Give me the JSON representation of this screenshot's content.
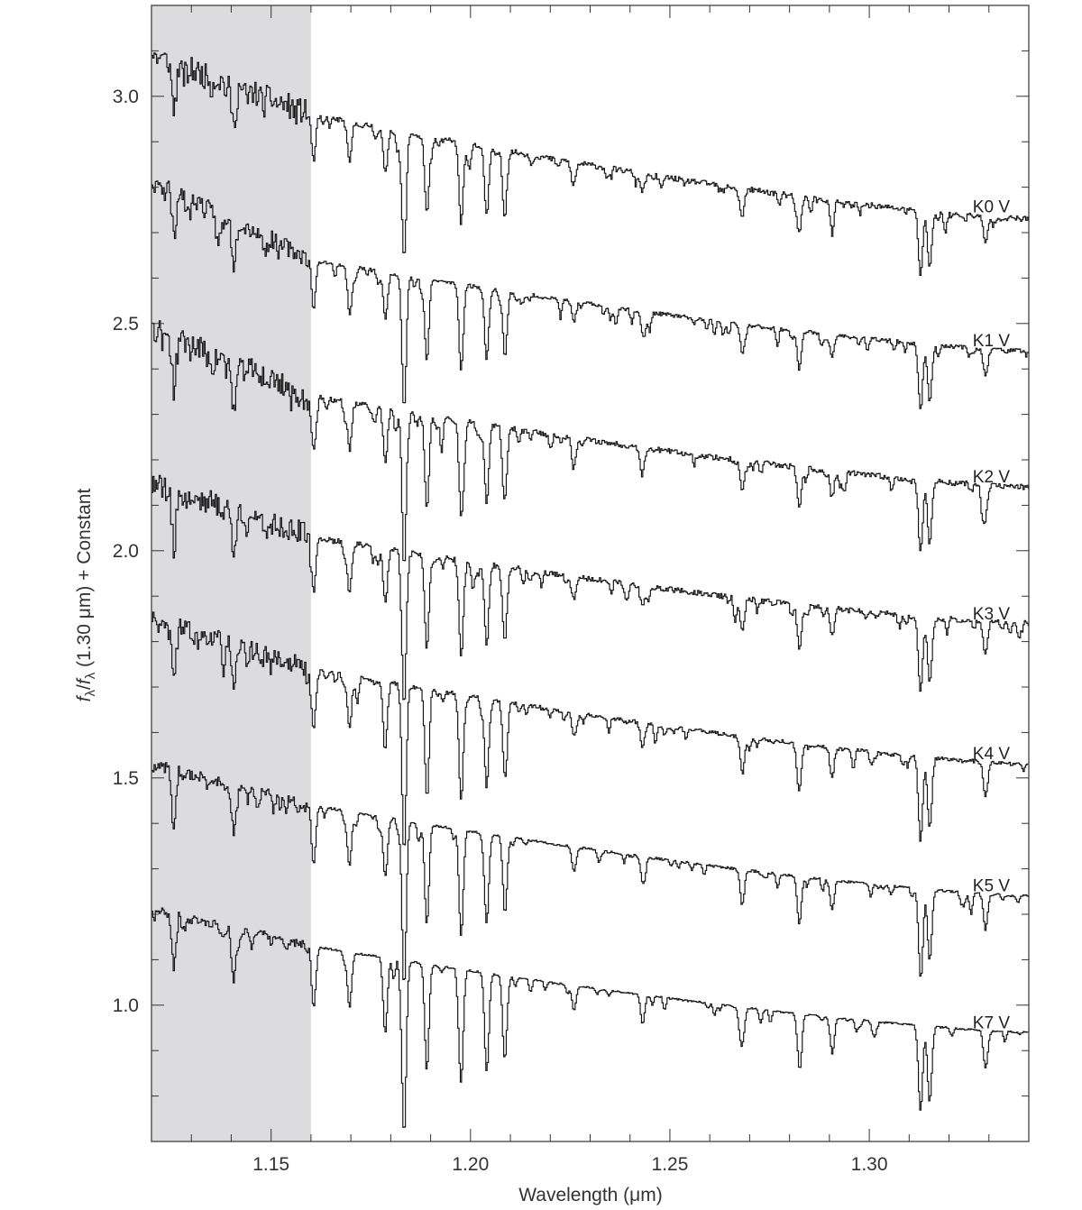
{
  "chart_data": {
    "type": "line",
    "xlabel": "Wavelength (μm)",
    "ylabel_parts": {
      "f1": "f",
      "sub1": "λ",
      "slash": "/",
      "f2": "f",
      "sub2": "λ",
      "rest": " (1.30 μm) + Constant"
    },
    "xlim": [
      1.12,
      1.34
    ],
    "ylim": [
      0.7,
      3.2
    ],
    "x_ticks": [
      1.15,
      1.2,
      1.25,
      1.3
    ],
    "x_tick_labels": [
      "1.15",
      "1.20",
      "1.25",
      "1.30"
    ],
    "y_ticks": [
      1.0,
      1.5,
      2.0,
      2.5,
      3.0
    ],
    "y_tick_labels": [
      "1.0",
      "1.5",
      "2.0",
      "2.5",
      "3.0"
    ],
    "shaded_region": {
      "x_range": [
        1.12,
        1.16
      ],
      "color": "#dcdcdf"
    },
    "absorption_lines": [
      {
        "x": 1.1605,
        "depth": 0.1
      },
      {
        "x": 1.1695,
        "depth": 0.09
      },
      {
        "x": 1.1785,
        "depth": 0.1
      },
      {
        "x": 1.1832,
        "depth": 0.28
      },
      {
        "x": 1.1889,
        "depth": 0.17
      },
      {
        "x": 1.1975,
        "depth": 0.18
      },
      {
        "x": 1.2039,
        "depth": 0.15
      },
      {
        "x": 1.2085,
        "depth": 0.13
      },
      {
        "x": 1.2258,
        "depth": 0.04
      },
      {
        "x": 1.243,
        "depth": 0.04
      },
      {
        "x": 1.268,
        "depth": 0.06
      },
      {
        "x": 1.2823,
        "depth": 0.08
      },
      {
        "x": 1.2905,
        "depth": 0.05
      },
      {
        "x": 1.3127,
        "depth": 0.14
      },
      {
        "x": 1.315,
        "depth": 0.12
      },
      {
        "x": 1.329,
        "depth": 0.06
      }
    ],
    "series": [
      {
        "name": "K0 V",
        "label": "K0 V",
        "anchor_130": 2.79,
        "start_level": 3.09,
        "mid_level": 2.96,
        "end_level": 2.73,
        "noise": 0.035,
        "line_scale": 1.0,
        "seed": 11
      },
      {
        "name": "K1 V",
        "label": "K1 V",
        "anchor_130": 2.48,
        "start_level": 2.82,
        "mid_level": 2.64,
        "end_level": 2.44,
        "noise": 0.025,
        "line_scale": 1.05,
        "seed": 23
      },
      {
        "name": "K2 V",
        "label": "K2 V",
        "anchor_130": 2.18,
        "start_level": 2.49,
        "mid_level": 2.34,
        "end_level": 2.14,
        "noise": 0.035,
        "line_scale": 1.15,
        "seed": 37
      },
      {
        "name": "K3 V",
        "label": "K3 V",
        "anchor_130": 1.87,
        "start_level": 2.15,
        "mid_level": 2.03,
        "end_level": 1.84,
        "noise": 0.035,
        "line_scale": 1.2,
        "seed": 41
      },
      {
        "name": "K4 V",
        "label": "K4 V",
        "anchor_130": 1.56,
        "start_level": 1.85,
        "mid_level": 1.74,
        "end_level": 1.53,
        "noise": 0.025,
        "line_scale": 1.3,
        "seed": 53
      },
      {
        "name": "K5 V",
        "label": "K5 V",
        "anchor_130": 1.27,
        "start_level": 1.53,
        "mid_level": 1.44,
        "end_level": 1.24,
        "noise": 0.015,
        "line_scale": 1.3,
        "seed": 67
      },
      {
        "name": "K7 V",
        "label": "K7 V",
        "anchor_130": 0.97,
        "start_level": 1.21,
        "mid_level": 1.13,
        "end_level": 0.94,
        "noise": 0.012,
        "line_scale": 1.35,
        "seed": 79
      }
    ]
  }
}
